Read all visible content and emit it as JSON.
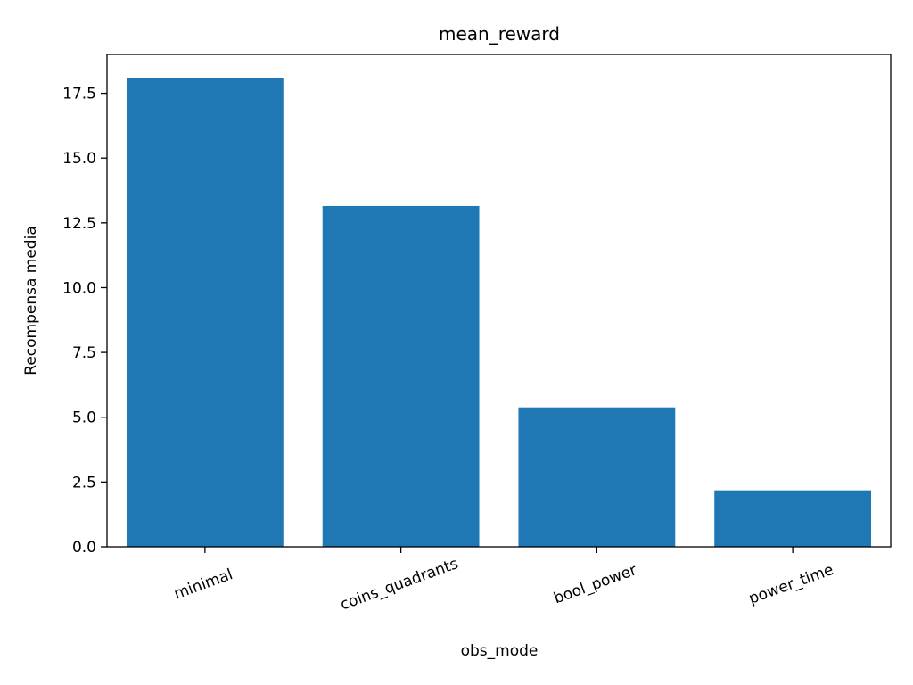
{
  "chart_data": {
    "type": "bar",
    "title": "mean_reward",
    "xlabel": "obs_mode",
    "ylabel": "Recompensa media",
    "categories": [
      "minimal",
      "coins_quadrants",
      "bool_power",
      "power_time"
    ],
    "values": [
      18.1,
      13.15,
      5.38,
      2.18
    ],
    "ylim": [
      0,
      19
    ],
    "yticks": [
      0.0,
      2.5,
      5.0,
      7.5,
      10.0,
      12.5,
      15.0,
      17.5
    ],
    "ytick_labels": [
      "0.0",
      "2.5",
      "5.0",
      "7.5",
      "10.0",
      "12.5",
      "15.0",
      "17.5"
    ],
    "bar_color": "#1f77b4",
    "grid": false,
    "legend": "none",
    "xtick_rotation": "slanted"
  }
}
